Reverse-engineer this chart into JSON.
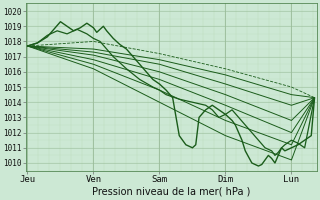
{
  "xlabel": "Pression niveau de la mer( hPa )",
  "x_ticks_labels": [
    "Jeu",
    "Ven",
    "Sam",
    "Dim",
    "Lun"
  ],
  "x_ticks_pos": [
    0,
    1,
    2,
    3,
    4
  ],
  "ylim": [
    1009.5,
    1020.5
  ],
  "yticks": [
    1010,
    1011,
    1012,
    1013,
    1014,
    1015,
    1016,
    1017,
    1018,
    1019,
    1020
  ],
  "bg_color": "#cce8d4",
  "grid_color_major": "#99bb99",
  "grid_color_minor": "#bbddbb",
  "line_color": "#1a5c1a",
  "lines": {
    "straight1": {
      "x": [
        0,
        1,
        2,
        3,
        4,
        4.35
      ],
      "y": [
        1017.7,
        1017.5,
        1016.8,
        1015.8,
        1014.5,
        1014.3
      ]
    },
    "straight2": {
      "x": [
        0,
        1,
        2,
        3,
        4,
        4.35
      ],
      "y": [
        1017.7,
        1017.3,
        1016.5,
        1015.2,
        1013.8,
        1014.3
      ]
    },
    "straight3": {
      "x": [
        0,
        1,
        2,
        3,
        4,
        4.35
      ],
      "y": [
        1017.7,
        1017.1,
        1016.0,
        1014.5,
        1012.8,
        1014.3
      ]
    },
    "straight4": {
      "x": [
        0,
        1,
        2,
        3,
        4,
        4.35
      ],
      "y": [
        1017.7,
        1016.8,
        1015.5,
        1013.8,
        1012.0,
        1014.3
      ]
    },
    "straight5": {
      "x": [
        0,
        1,
        2,
        3,
        4,
        4.35
      ],
      "y": [
        1017.7,
        1016.5,
        1014.8,
        1012.8,
        1011.2,
        1014.3
      ]
    },
    "straight6": {
      "x": [
        0,
        1,
        2,
        3,
        4,
        4.35
      ],
      "y": [
        1017.7,
        1016.2,
        1014.0,
        1011.8,
        1010.2,
        1014.3
      ]
    },
    "dashed1": {
      "x": [
        0,
        1,
        2,
        3,
        4,
        4.35
      ],
      "y": [
        1017.7,
        1018.0,
        1017.2,
        1016.2,
        1015.0,
        1014.3
      ]
    },
    "jagged1": {
      "x": [
        0,
        0.15,
        0.3,
        0.4,
        0.5,
        0.6,
        0.7,
        0.8,
        0.9,
        1.0,
        1.05,
        1.1,
        1.15,
        1.2,
        1.3,
        1.4,
        1.5,
        1.6,
        1.7,
        1.8,
        1.9,
        2.0,
        2.05,
        2.1,
        2.2,
        2.3,
        2.4,
        2.5,
        2.55,
        2.6,
        2.7,
        2.8,
        2.9,
        3.0,
        3.05,
        3.1,
        3.15,
        3.2,
        3.25,
        3.3,
        3.4,
        3.5,
        3.55,
        3.6,
        3.65,
        3.7,
        3.75,
        3.8,
        3.85,
        3.9,
        4.0,
        4.1,
        4.2,
        4.3,
        4.35
      ],
      "y": [
        1017.7,
        1017.9,
        1018.3,
        1018.8,
        1019.3,
        1019.0,
        1018.7,
        1018.9,
        1019.2,
        1018.9,
        1018.6,
        1018.8,
        1019.0,
        1018.7,
        1018.2,
        1017.8,
        1017.5,
        1017.0,
        1016.5,
        1016.0,
        1015.5,
        1015.2,
        1015.0,
        1014.8,
        1014.3,
        1011.8,
        1011.2,
        1011.0,
        1011.2,
        1013.0,
        1013.5,
        1013.8,
        1013.5,
        1013.2,
        1013.0,
        1012.8,
        1012.5,
        1012.0,
        1011.5,
        1010.8,
        1010.0,
        1009.8,
        1009.9,
        1010.2,
        1010.5,
        1010.3,
        1010.0,
        1010.5,
        1011.0,
        1010.8,
        1011.0,
        1011.2,
        1011.5,
        1011.8,
        1014.3
      ]
    },
    "jagged2": {
      "x": [
        0,
        0.15,
        0.3,
        0.45,
        0.6,
        0.75,
        0.9,
        1.0,
        1.1,
        1.2,
        1.3,
        1.5,
        1.7,
        1.9,
        2.0,
        2.1,
        2.3,
        2.5,
        2.7,
        2.8,
        2.9,
        3.0,
        3.1,
        3.2,
        3.3,
        3.4,
        3.5,
        3.6,
        3.7,
        3.75,
        3.8,
        3.85,
        3.9,
        4.0,
        4.1,
        4.2,
        4.35
      ],
      "y": [
        1017.7,
        1017.9,
        1018.4,
        1018.7,
        1018.5,
        1018.8,
        1018.5,
        1018.2,
        1018.0,
        1017.5,
        1017.0,
        1016.2,
        1015.5,
        1015.0,
        1014.8,
        1014.5,
        1014.2,
        1014.0,
        1013.8,
        1013.5,
        1013.0,
        1013.2,
        1013.5,
        1013.0,
        1012.5,
        1012.0,
        1011.5,
        1011.0,
        1010.8,
        1010.5,
        1010.7,
        1011.0,
        1011.2,
        1011.5,
        1011.3,
        1011.0,
        1014.3
      ]
    }
  }
}
